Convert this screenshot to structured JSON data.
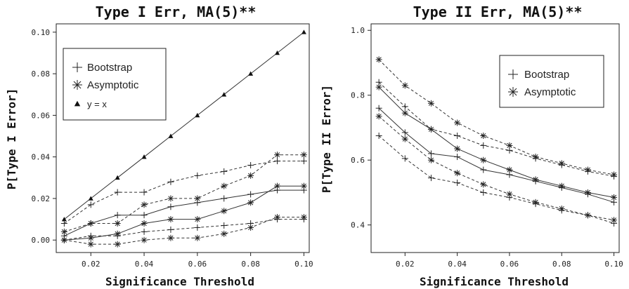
{
  "chart_data": [
    {
      "type": "line",
      "title": "Type I Err, MA(5)**",
      "xlabel": "Significance Threshold",
      "ylabel": "P[Type I Error]",
      "xlim": [
        0.007,
        0.102
      ],
      "ylim": [
        -0.006,
        0.104
      ],
      "xticks": [
        0.02,
        0.04,
        0.06,
        0.08,
        0.1
      ],
      "xtick_labels": [
        "0.02",
        "0.04",
        "0.06",
        "0.08",
        "0.10"
      ],
      "yticks": [
        0.0,
        0.02,
        0.04,
        0.06,
        0.08,
        0.1
      ],
      "ytick_labels": [
        "0.00",
        "0.02",
        "0.04",
        "0.06",
        "0.08",
        "0.10"
      ],
      "legend": {
        "placement": "top-left",
        "entries": [
          {
            "label": "Bootstrap",
            "marker": "plus"
          },
          {
            "label": "Asymptotic",
            "marker": "star"
          },
          {
            "label": "y = x",
            "marker": "triangle"
          }
        ]
      },
      "x": [
        0.01,
        0.02,
        0.03,
        0.04,
        0.05,
        0.06,
        0.07,
        0.08,
        0.09,
        0.1
      ],
      "series": [
        {
          "marker": "triangle",
          "style": "solid",
          "values": [
            0.01,
            0.02,
            0.03,
            0.04,
            0.05,
            0.06,
            0.07,
            0.08,
            0.09,
            0.1
          ]
        },
        {
          "marker": "plus",
          "style": "solid",
          "values": [
            0.002,
            0.008,
            0.012,
            0.012,
            0.016,
            0.018,
            0.02,
            0.022,
            0.024,
            0.024
          ]
        },
        {
          "marker": "plus",
          "style": "dashed",
          "values": [
            0.008,
            0.017,
            0.023,
            0.023,
            0.028,
            0.031,
            0.033,
            0.036,
            0.038,
            0.038
          ]
        },
        {
          "marker": "plus",
          "style": "dashed",
          "values": [
            0.0,
            0.002,
            0.002,
            0.004,
            0.005,
            0.006,
            0.007,
            0.008,
            0.01,
            0.01
          ]
        },
        {
          "marker": "star",
          "style": "solid",
          "values": [
            0.0,
            0.001,
            0.003,
            0.008,
            0.01,
            0.01,
            0.014,
            0.018,
            0.026,
            0.026
          ]
        },
        {
          "marker": "star",
          "style": "dashed",
          "values": [
            0.004,
            0.008,
            0.008,
            0.017,
            0.02,
            0.02,
            0.026,
            0.031,
            0.041,
            0.041
          ]
        },
        {
          "marker": "star",
          "style": "dashed",
          "values": [
            0.0,
            -0.002,
            -0.002,
            0.0,
            0.001,
            0.001,
            0.003,
            0.006,
            0.011,
            0.011
          ]
        }
      ]
    },
    {
      "type": "line",
      "title": "Type II Err, MA(5)**",
      "xlabel": "Significance Threshold",
      "ylabel": "P[Type II Error]",
      "xlim": [
        0.007,
        0.102
      ],
      "ylim": [
        0.315,
        1.02
      ],
      "xticks": [
        0.02,
        0.04,
        0.06,
        0.08,
        0.1
      ],
      "xtick_labels": [
        "0.02",
        "0.04",
        "0.06",
        "0.08",
        "0.10"
      ],
      "yticks": [
        0.4,
        0.6,
        0.8,
        1.0
      ],
      "ytick_labels": [
        "0.4",
        "0.6",
        "0.8",
        "1.0"
      ],
      "legend": {
        "placement": "top-right",
        "entries": [
          {
            "label": "Bootstrap",
            "marker": "plus"
          },
          {
            "label": "Asymptotic",
            "marker": "star"
          }
        ]
      },
      "x": [
        0.01,
        0.02,
        0.03,
        0.04,
        0.05,
        0.06,
        0.07,
        0.08,
        0.09,
        0.1
      ],
      "series": [
        {
          "marker": "plus",
          "style": "solid",
          "values": [
            0.76,
            0.685,
            0.62,
            0.61,
            0.57,
            0.555,
            0.535,
            0.515,
            0.495,
            0.47
          ]
        },
        {
          "marker": "plus",
          "style": "dashed",
          "values": [
            0.84,
            0.765,
            0.695,
            0.675,
            0.645,
            0.63,
            0.605,
            0.585,
            0.565,
            0.55
          ]
        },
        {
          "marker": "plus",
          "style": "dashed",
          "values": [
            0.675,
            0.605,
            0.545,
            0.53,
            0.5,
            0.485,
            0.465,
            0.445,
            0.43,
            0.405
          ]
        },
        {
          "marker": "star",
          "style": "solid",
          "values": [
            0.825,
            0.745,
            0.695,
            0.635,
            0.6,
            0.57,
            0.54,
            0.52,
            0.5,
            0.485
          ]
        },
        {
          "marker": "star",
          "style": "dashed",
          "values": [
            0.91,
            0.83,
            0.775,
            0.715,
            0.675,
            0.645,
            0.61,
            0.59,
            0.57,
            0.555
          ]
        },
        {
          "marker": "star",
          "style": "dashed",
          "values": [
            0.735,
            0.665,
            0.6,
            0.56,
            0.525,
            0.495,
            0.47,
            0.45,
            0.43,
            0.415
          ]
        }
      ]
    }
  ]
}
